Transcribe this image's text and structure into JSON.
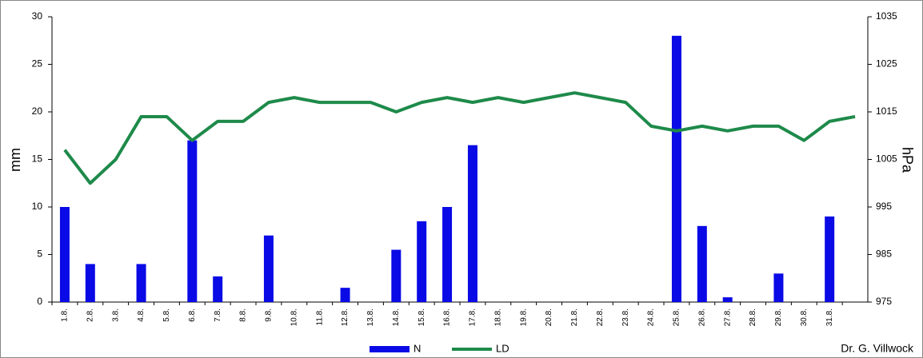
{
  "chart_data": {
    "type": "bar",
    "categories": [
      "1.8.",
      "2.8.",
      "3.8.",
      "4.8.",
      "5.8.",
      "6.8.",
      "7.8.",
      "8.8.",
      "9.8.",
      "10.8.",
      "11.8.",
      "12.8.",
      "13.8.",
      "14.8.",
      "15.8.",
      "16.8.",
      "17.8.",
      "18.8.",
      "19.8.",
      "20.8.",
      "21.8.",
      "22.8.",
      "23.8.",
      "24.8.",
      "25.8.",
      "26.8.",
      "27.8.",
      "28.8.",
      "29.8.",
      "30.8.",
      "31.8.",
      null
    ],
    "series": [
      {
        "name": "N",
        "type": "bar",
        "color": "#0a0ae6",
        "axis": "y",
        "values": [
          10,
          4,
          0,
          4,
          0,
          17,
          2.7,
          0,
          7,
          0,
          0,
          1.5,
          0,
          5.5,
          8.5,
          10,
          16.5,
          0,
          0,
          0,
          0,
          0,
          0,
          0,
          28,
          8,
          0.5,
          0,
          3,
          0,
          9,
          null
        ]
      },
      {
        "name": "LD",
        "type": "line",
        "color": "#1e8a4a",
        "axis": "y2",
        "values": [
          1007,
          1000,
          1005,
          1014,
          1014,
          1009,
          1013,
          1013,
          1017,
          1018,
          1017,
          1017,
          1017,
          1015,
          1017,
          1018,
          1017,
          1018,
          1017,
          1018,
          1019,
          1018,
          1017,
          1012,
          1011,
          1012,
          1011,
          1012,
          1012,
          1009,
          1013,
          1014
        ]
      }
    ],
    "y_label": "mm",
    "y2_label": "hPa",
    "ylim": [
      0,
      30
    ],
    "yticks": [
      0,
      5,
      10,
      15,
      20,
      25,
      30
    ],
    "y2lim": [
      975,
      1035
    ],
    "y2ticks": [
      975,
      985,
      995,
      1005,
      1015,
      1025,
      1035
    ],
    "legend": "bottom",
    "credit": "Dr. G. Villwock"
  }
}
